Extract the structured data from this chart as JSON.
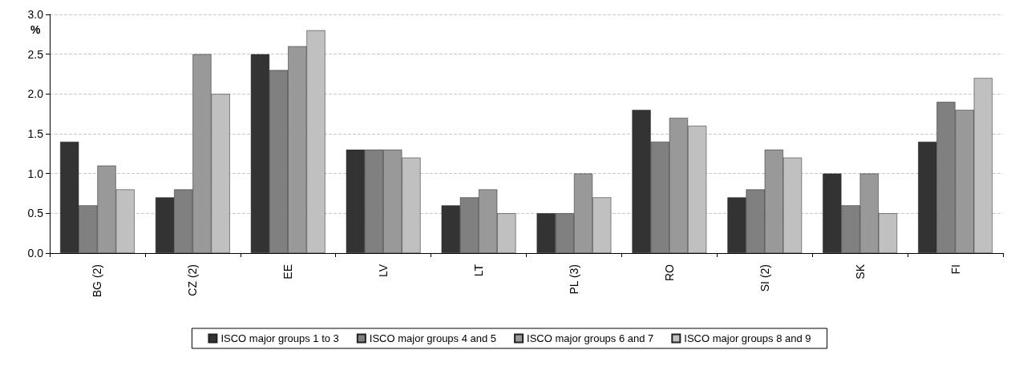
{
  "chart_data": {
    "type": "bar",
    "ylabel": "%",
    "categories": [
      "BG (2)",
      "CZ (2)",
      "EE",
      "LV",
      "LT",
      "PL (3)",
      "RO",
      "SI (2)",
      "SK",
      "FI"
    ],
    "series": [
      {
        "name": "ISCO major groups 1 to 3",
        "color": "#333333",
        "values": [
          1.4,
          0.7,
          2.5,
          1.3,
          0.6,
          0.5,
          1.8,
          0.7,
          1.0,
          1.4
        ]
      },
      {
        "name": "ISCO major groups 4 and 5",
        "color": "#808080",
        "values": [
          0.6,
          0.8,
          2.3,
          1.3,
          0.7,
          0.5,
          1.4,
          0.8,
          0.6,
          1.9
        ]
      },
      {
        "name": "ISCO major groups 6 and 7",
        "color": "#999999",
        "values": [
          1.1,
          2.5,
          2.6,
          1.3,
          0.8,
          1.0,
          1.7,
          1.3,
          1.0,
          1.8
        ]
      },
      {
        "name": "ISCO major groups 8 and 9",
        "color": "#c0c0c0",
        "values": [
          0.8,
          2.0,
          2.8,
          1.2,
          0.5,
          0.7,
          1.6,
          1.2,
          0.5,
          2.2
        ]
      }
    ],
    "ylim": [
      0,
      3
    ],
    "yticks": [
      {
        "value": 0,
        "label": "0.0"
      },
      {
        "value": 0.5,
        "label": "0.5"
      },
      {
        "value": 1,
        "label": "1.0"
      },
      {
        "value": 1.5,
        "label": "1.5"
      },
      {
        "value": 2,
        "label": "2.0"
      },
      {
        "value": 2.5,
        "label": "2.5"
      },
      {
        "value": 3,
        "label": "3.0"
      }
    ],
    "grid": "y",
    "legend": "bottom"
  }
}
